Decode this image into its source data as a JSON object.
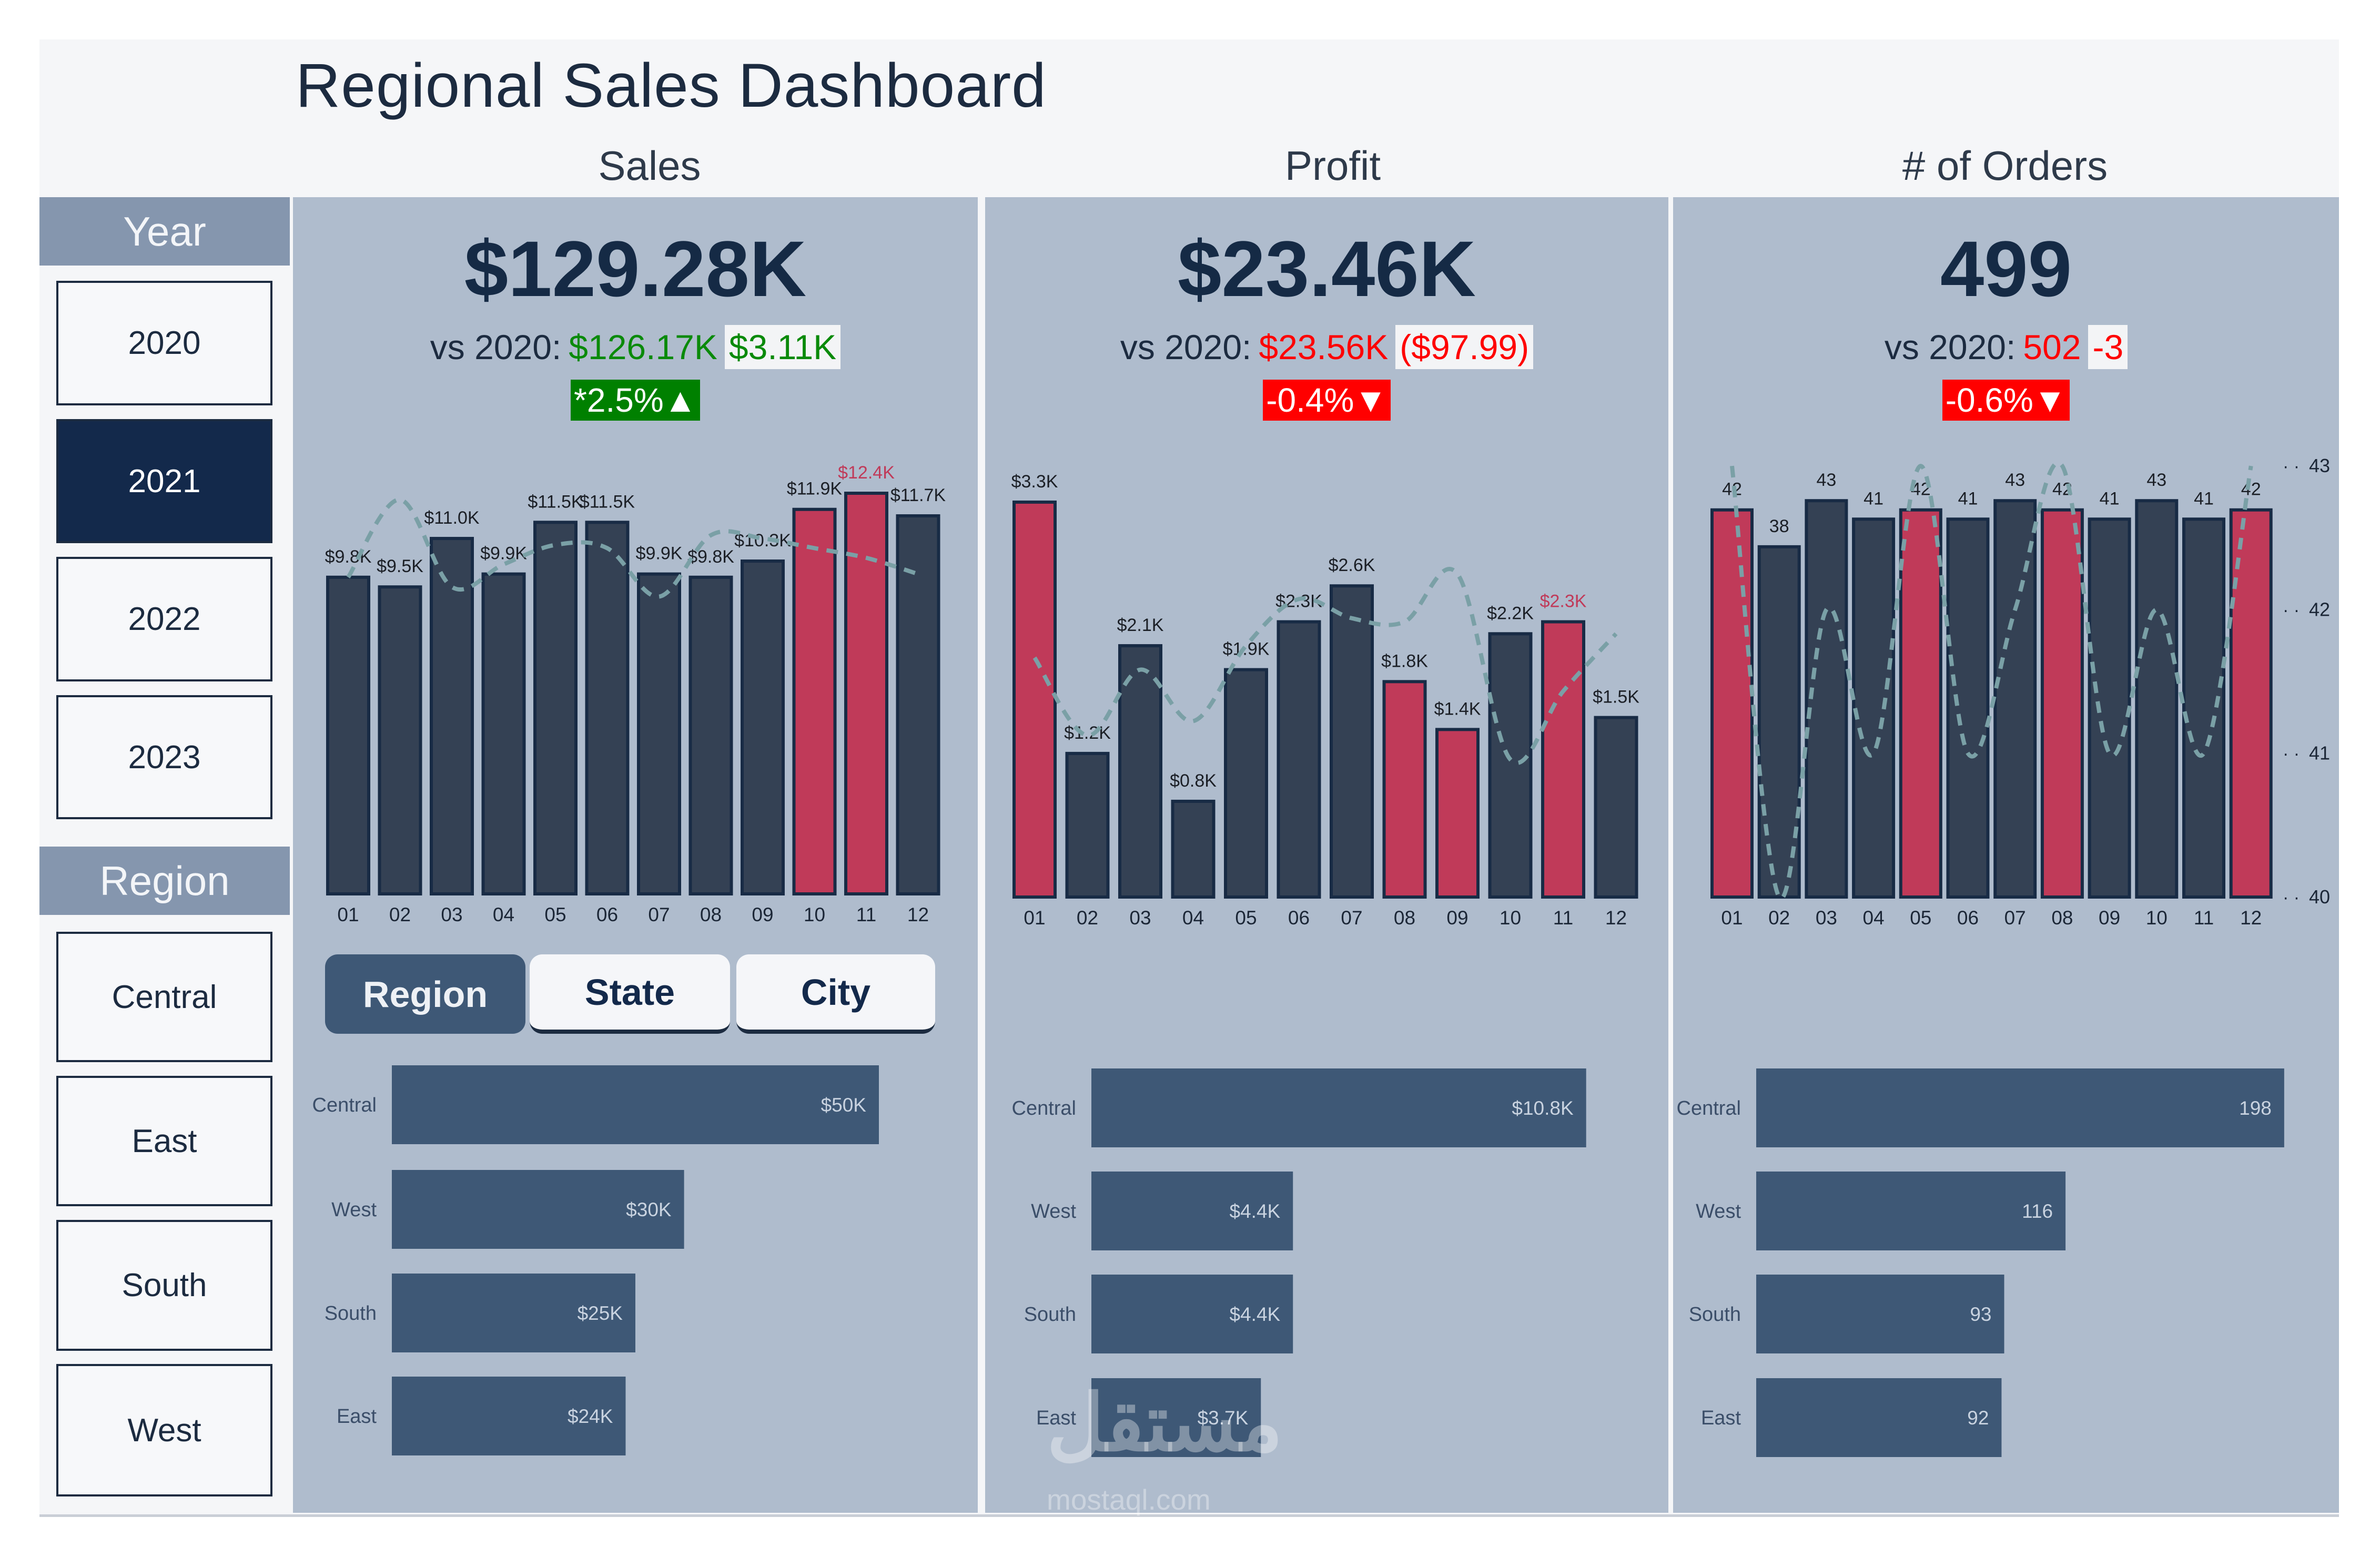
{
  "title": "Regional Sales Dashboard",
  "column_headers": [
    "Sales",
    "Profit",
    "# of Orders"
  ],
  "sidebar": {
    "year": {
      "label": "Year",
      "items": [
        {
          "label": "2020",
          "selected": false
        },
        {
          "label": "2021",
          "selected": true
        },
        {
          "label": "2022",
          "selected": false
        },
        {
          "label": "2023",
          "selected": false
        }
      ]
    },
    "region": {
      "label": "Region",
      "items": [
        {
          "label": "Central",
          "selected": false
        },
        {
          "label": "East",
          "selected": false
        },
        {
          "label": "South",
          "selected": false
        },
        {
          "label": "West",
          "selected": false
        }
      ]
    }
  },
  "kpis": [
    {
      "value": "$129.28K",
      "vs_label": "vs 2020:",
      "prior": "$126.17K",
      "delta": "$3.11K",
      "pct": "*2.5%",
      "direction": "up",
      "status": "positive"
    },
    {
      "value": "$23.46K",
      "vs_label": "vs 2020:",
      "prior": "$23.56K",
      "delta": "($97.99)",
      "pct": "-0.4%",
      "direction": "down",
      "status": "negative"
    },
    {
      "value": "499",
      "vs_label": "vs 2020:",
      "prior": "502",
      "delta": "-3",
      "pct": "-0.6%",
      "direction": "down",
      "status": "negative"
    }
  ],
  "breakdown_tabs": [
    {
      "label": "Region",
      "active": true
    },
    {
      "label": "State",
      "active": false
    },
    {
      "label": "City",
      "active": false
    }
  ],
  "colors": {
    "bar": "#344154",
    "highlight": "#c03a59",
    "line": "#7aa0a6",
    "hbar": "#3e5876",
    "panel": "#afbccd",
    "positive": "#008000",
    "negative": "#ff0000"
  },
  "watermark": {
    "text": "مستقل",
    "sub": "mostaql.com"
  },
  "chart_data": [
    {
      "type": "bar+line",
      "metric": "Sales",
      "categories": [
        "01",
        "02",
        "03",
        "04",
        "05",
        "06",
        "07",
        "08",
        "09",
        "10",
        "11",
        "12"
      ],
      "values": [
        9800,
        9500,
        11000,
        9900,
        11500,
        11500,
        9900,
        9800,
        10300,
        11900,
        12400,
        11700
      ],
      "labels": [
        "$9.8K",
        "$9.5K",
        "$11.0K",
        "$9.9K",
        "$11.5K",
        "$11.5K",
        "$9.9K",
        "$9.8K",
        "$10.3K",
        "$11.9K",
        "$12.4K",
        "$11.7K"
      ],
      "highlight": [
        false,
        false,
        false,
        false,
        false,
        false,
        false,
        false,
        false,
        true,
        true,
        false
      ],
      "line_values": [
        9800,
        12200,
        9500,
        10200,
        10800,
        10700,
        9200,
        11100,
        11000,
        10700,
        10400,
        9900
      ],
      "line_style": "dashed",
      "ylim": [
        0,
        12400
      ]
    },
    {
      "type": "bar+line",
      "metric": "Profit",
      "categories": [
        "01",
        "02",
        "03",
        "04",
        "05",
        "06",
        "07",
        "08",
        "09",
        "10",
        "11",
        "12"
      ],
      "values": [
        3300,
        1200,
        2100,
        800,
        1900,
        2300,
        2600,
        1800,
        1400,
        2200,
        2300,
        1500
      ],
      "labels": [
        "$3.3K",
        "$1.2K",
        "$2.1K",
        "$0.8K",
        "$1.9K",
        "$2.3K",
        "$2.6K",
        "$1.8K",
        "$1.4K",
        "$2.2K",
        "$2.3K",
        "$1.5K"
      ],
      "highlight": [
        true,
        false,
        false,
        false,
        false,
        false,
        false,
        true,
        true,
        false,
        true,
        false
      ],
      "line_values": [
        2000,
        1350,
        1900,
        1470,
        2100,
        2490,
        2330,
        2300,
        2700,
        1150,
        1720,
        2200
      ],
      "line_style": "dashed",
      "ylim": [
        0,
        3300
      ]
    },
    {
      "type": "bar+line",
      "metric": "# of Orders",
      "categories": [
        "01",
        "02",
        "03",
        "04",
        "05",
        "06",
        "07",
        "08",
        "09",
        "10",
        "11",
        "12"
      ],
      "values": [
        42,
        38,
        43,
        41,
        42,
        41,
        43,
        42,
        41,
        43,
        41,
        42
      ],
      "labels": [
        "42",
        "38",
        "43",
        "41",
        "42",
        "41",
        "43",
        "42",
        "41",
        "43",
        "41",
        "42"
      ],
      "highlight": [
        true,
        false,
        false,
        false,
        true,
        false,
        false,
        true,
        false,
        false,
        false,
        true
      ],
      "line_values": [
        43,
        40,
        42,
        41,
        43,
        41,
        42,
        43,
        41,
        42,
        41,
        43
      ],
      "line_style": "dashed",
      "secondary_axis": {
        "ticks": [
          "40",
          "41",
          "42",
          "43"
        ],
        "range": [
          40,
          43
        ]
      }
    },
    {
      "type": "hbar",
      "metric": "Sales",
      "categories": [
        "Central",
        "West",
        "South",
        "East"
      ],
      "values": [
        50000,
        30000,
        25000,
        24000
      ],
      "labels": [
        "$50K",
        "$30K",
        "$25K",
        "$24K"
      ]
    },
    {
      "type": "hbar",
      "metric": "Profit",
      "categories": [
        "Central",
        "West",
        "South",
        "East"
      ],
      "values": [
        10800,
        4400,
        4400,
        3700
      ],
      "labels": [
        "$10.8K",
        "$4.4K",
        "$4.4K",
        "$3.7K"
      ]
    },
    {
      "type": "hbar",
      "metric": "# of Orders",
      "categories": [
        "Central",
        "West",
        "South",
        "East"
      ],
      "values": [
        198,
        116,
        93,
        92
      ],
      "labels": [
        "198",
        "116",
        "93",
        "92"
      ]
    }
  ]
}
